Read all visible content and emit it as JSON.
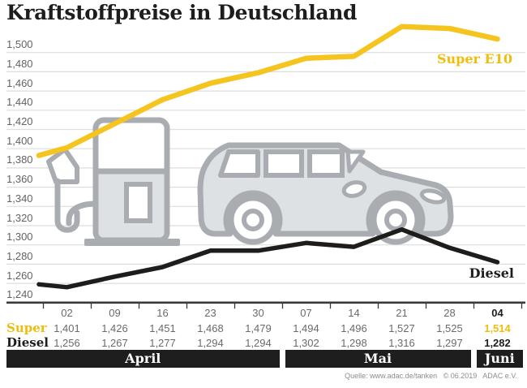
{
  "title": "Kraftstoffpreise in Deutschland",
  "source": "Quelle: www.adac.de/tanken   © 06.2019   ADAC e.V.",
  "colors": {
    "super_yellow": "#f5c41e",
    "diesel_black": "#1d1d1b",
    "grid": "#dedede",
    "axis": "#3a3a3a",
    "muted_text": "#6a6a6a",
    "icon_fill": "#dee1e3",
    "icon_stroke": "#a9adb2",
    "month_bar_bg": "#1e1e1e"
  },
  "chart_data": {
    "type": "line",
    "title": "Kraftstoffpreise in Deutschland",
    "x": [
      "02",
      "09",
      "16",
      "23",
      "30",
      "07",
      "14",
      "21",
      "28",
      "04"
    ],
    "months": [
      {
        "label": "April",
        "cols": 5
      },
      {
        "label": "Mai",
        "cols": 4
      },
      {
        "label": "Juni",
        "cols": 1
      }
    ],
    "ylim": [
      1240,
      1500
    ],
    "y_tick_step": 20,
    "y_ticks": [
      "1,500",
      "1,480",
      "1,460",
      "1,440",
      "1,420",
      "1,400",
      "1,380",
      "1,360",
      "1,340",
      "1,320",
      "1,300",
      "1,280",
      "1,260",
      "1,240"
    ],
    "grid": true,
    "legend_position": "inline-right",
    "series": [
      {
        "name": "Super E10",
        "color": "#f5c41e",
        "values": [
          1401,
          1426,
          1451,
          1468,
          1479,
          1494,
          1496,
          1527,
          1525,
          1514
        ],
        "lead_in_value": 1393
      },
      {
        "name": "Diesel",
        "color": "#1d1d1b",
        "values": [
          1256,
          1267,
          1277,
          1294,
          1294,
          1302,
          1298,
          1316,
          1297,
          1282
        ],
        "lead_in_value": 1259
      }
    ]
  },
  "table": {
    "dates": [
      "02",
      "09",
      "16",
      "23",
      "30",
      "07",
      "14",
      "21",
      "28",
      "04"
    ],
    "rows": [
      {
        "label": "Super",
        "values": [
          "1,401",
          "1,426",
          "1,451",
          "1,468",
          "1,479",
          "1,494",
          "1,496",
          "1,527",
          "1,525",
          "1,514"
        ]
      },
      {
        "label": "Diesel",
        "values": [
          "1,256",
          "1,267",
          "1,277",
          "1,294",
          "1,294",
          "1,302",
          "1,298",
          "1,316",
          "1,297",
          "1,282"
        ]
      }
    ]
  }
}
